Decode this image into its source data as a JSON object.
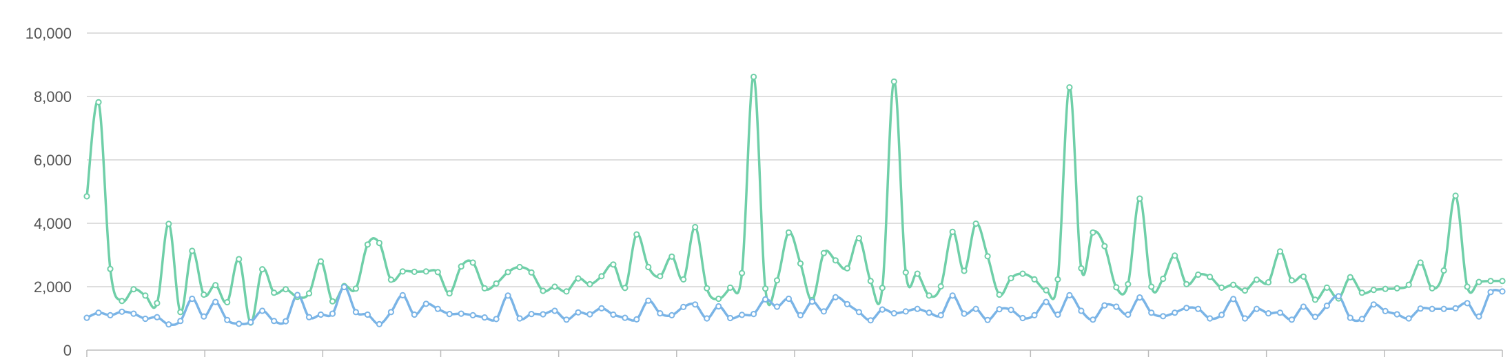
{
  "chart_data": {
    "type": "line",
    "ylim": [
      0,
      10000
    ],
    "yticks": [
      "0",
      "2,000",
      "4,000",
      "6,000",
      "8,000",
      "10,000"
    ],
    "ytick_values": [
      0,
      2000,
      4000,
      6000,
      8000,
      10000
    ],
    "grid": true,
    "legend": "none",
    "x": [
      1,
      2,
      3,
      4,
      5,
      6,
      7,
      8,
      9,
      10,
      11,
      12,
      13,
      14,
      15,
      16,
      17,
      18,
      19,
      20,
      21,
      22,
      23,
      24,
      25,
      26,
      27,
      28,
      29,
      30,
      31,
      32,
      33,
      34,
      35,
      36,
      37,
      38,
      39,
      40,
      41,
      42,
      43,
      44,
      45,
      46,
      47,
      48,
      49,
      50,
      51,
      52,
      53,
      54,
      55,
      56,
      57,
      58,
      59,
      60,
      61,
      62,
      63,
      64,
      65,
      66,
      67,
      68,
      69,
      70,
      71,
      72,
      73,
      74,
      75,
      76,
      77,
      78,
      79,
      80,
      81,
      82,
      83,
      84,
      85,
      86,
      87,
      88,
      89,
      90,
      91,
      92,
      93,
      94,
      95,
      96,
      97,
      98,
      99,
      100,
      101,
      102,
      103,
      104,
      105,
      106,
      107,
      108,
      109,
      110,
      111,
      112,
      113,
      114,
      115,
      116,
      117,
      118,
      119,
      120,
      121,
      122
    ],
    "series": [
      {
        "color": "#6fcfa8",
        "values": [
          4850,
          7820,
          2560,
          1550,
          1920,
          1720,
          1480,
          3980,
          1200,
          3130,
          1750,
          2050,
          1510,
          2870,
          870,
          2550,
          1810,
          1920,
          1680,
          1790,
          2800,
          1540,
          2020,
          1940,
          3330,
          3380,
          2220,
          2480,
          2470,
          2480,
          2460,
          1790,
          2640,
          2760,
          1950,
          2100,
          2460,
          2620,
          2450,
          1870,
          2000,
          1850,
          2260,
          2080,
          2330,
          2700,
          1960,
          3650,
          2620,
          2330,
          2950,
          2230,
          3880,
          1950,
          1620,
          1970,
          2430,
          8620,
          1940,
          2200,
          3710,
          2730,
          1580,
          3060,
          2830,
          2580,
          3530,
          2180,
          1960,
          8470,
          2450,
          2410,
          1720,
          2010,
          3730,
          2500,
          3990,
          2960,
          1750,
          2270,
          2410,
          2230,
          1890,
          2230,
          8290,
          2580,
          3710,
          3280,
          1980,
          2080,
          4780,
          2000,
          2250,
          2980,
          2080,
          2380,
          2310,
          1970,
          2060,
          1880,
          2220,
          2140,
          3110,
          2200,
          2320,
          1590,
          1970,
          1630,
          2300,
          1810,
          1900,
          1930,
          1950,
          2060,
          2760,
          1950,
          2510,
          4870,
          2000,
          2150,
          2180,
          2180
        ]
      },
      {
        "color": "#7ab4e6",
        "values": [
          1020,
          1180,
          1100,
          1210,
          1150,
          990,
          1040,
          810,
          920,
          1620,
          1060,
          1520,
          950,
          830,
          880,
          1240,
          920,
          910,
          1740,
          1040,
          1120,
          1150,
          1990,
          1200,
          1120,
          820,
          1200,
          1730,
          1120,
          1460,
          1300,
          1140,
          1150,
          1100,
          1030,
          980,
          1720,
          1000,
          1140,
          1130,
          1240,
          960,
          1190,
          1130,
          1320,
          1120,
          1020,
          970,
          1560,
          1160,
          1100,
          1360,
          1440,
          1000,
          1380,
          1010,
          1110,
          1140,
          1600,
          1370,
          1620,
          1100,
          1530,
          1220,
          1670,
          1450,
          1200,
          940,
          1280,
          1160,
          1220,
          1300,
          1180,
          1100,
          1720,
          1150,
          1300,
          950,
          1290,
          1270,
          1010,
          1100,
          1520,
          1120,
          1730,
          1240,
          960,
          1410,
          1370,
          1120,
          1660,
          1180,
          1070,
          1180,
          1330,
          1300,
          1000,
          1110,
          1610,
          1000,
          1300,
          1160,
          1180,
          960,
          1370,
          1050,
          1400,
          1700,
          1020,
          980,
          1440,
          1230,
          1130,
          1000,
          1310,
          1300,
          1300,
          1320,
          1480,
          1060,
          1830,
          1850
        ]
      }
    ]
  }
}
